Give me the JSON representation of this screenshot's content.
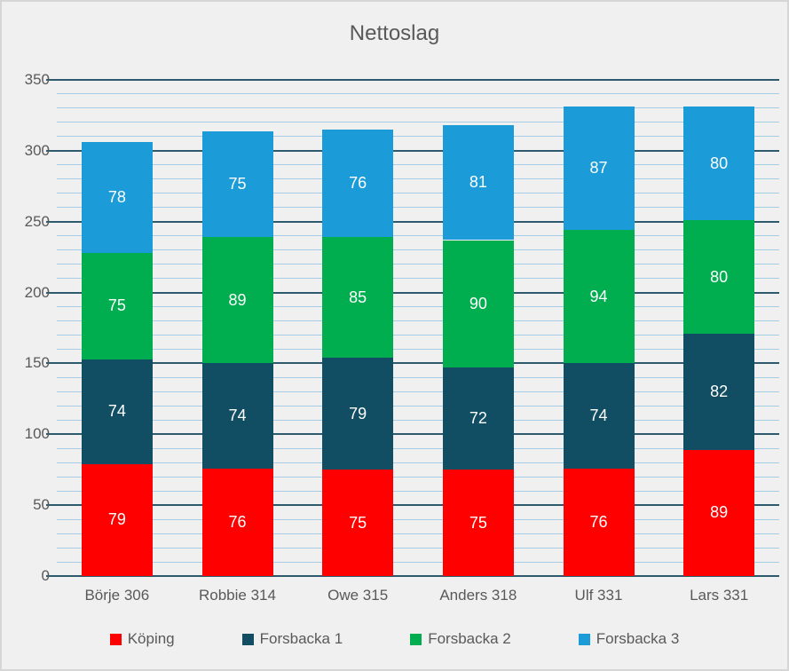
{
  "chart_data": {
    "type": "bar",
    "stacked": true,
    "title": "Nettoslag",
    "categories": [
      "Börje 306",
      "Robbie 314",
      "Owe 315",
      "Anders 318",
      "Ulf 331",
      "Lars 331"
    ],
    "series": [
      {
        "name": "Köping",
        "color": "#FF0000",
        "values": [
          79,
          76,
          75,
          75,
          76,
          89
        ]
      },
      {
        "name": "Forsbacka 1",
        "color": "#114E63",
        "values": [
          74,
          74,
          79,
          72,
          74,
          82
        ]
      },
      {
        "name": "Forsbacka 2",
        "color": "#00AE50",
        "values": [
          75,
          89,
          85,
          90,
          94,
          80
        ]
      },
      {
        "name": "Forsbacka 3",
        "color": "#1B9CD8",
        "values": [
          78,
          75,
          76,
          81,
          87,
          80
        ]
      }
    ],
    "xlabel": "",
    "ylabel": "",
    "ylim": [
      0,
      350
    ],
    "yticks": [
      0,
      50,
      100,
      150,
      200,
      250,
      300,
      350
    ],
    "major_unit": 50,
    "minor_unit": 10,
    "grid": "major+minor",
    "data_labels": true,
    "legend_position": "bottom",
    "colors": {
      "background": "#F0F0F0",
      "frame_border": "#D6D6D6",
      "major_gridline": "#2E5A6E",
      "minor_gridline": "#A5CDE6",
      "axis_text": "#595959",
      "title_text": "#595959",
      "data_label_text": "#FFFFFF"
    }
  }
}
